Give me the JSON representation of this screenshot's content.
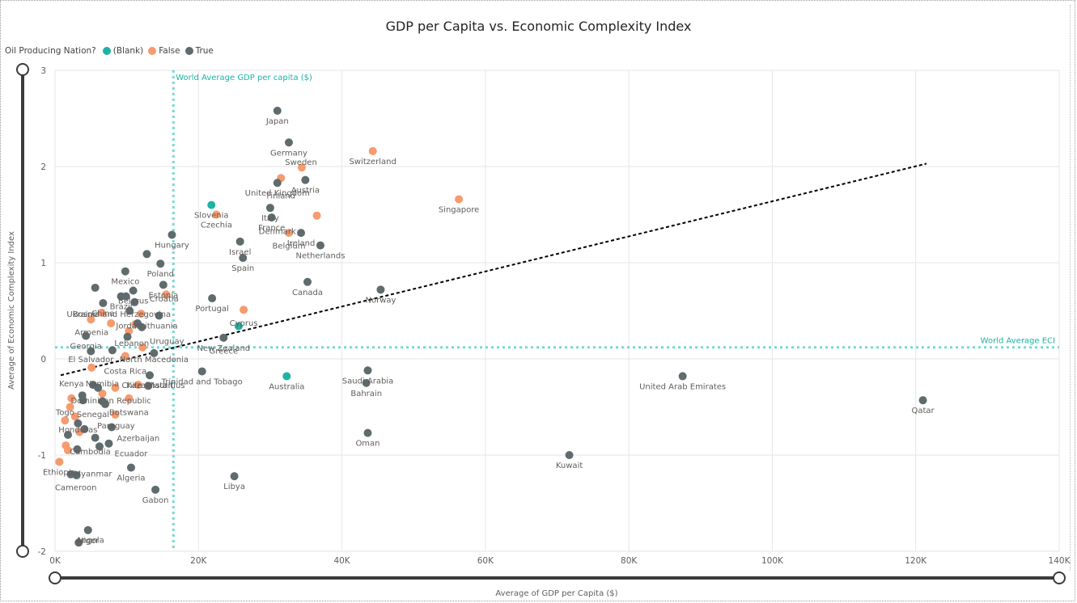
{
  "chart_data": {
    "type": "scatter",
    "title": "GDP per Capita vs. Economic Complexity Index",
    "xlabel": "Average of GDP per Capita ($)",
    "ylabel": "Average of Economic Complexity Index",
    "xlim": [
      0,
      140000
    ],
    "ylim": [
      -2,
      3
    ],
    "x_ticks": [
      {
        "value": 0,
        "label": "0K"
      },
      {
        "value": 20000,
        "label": "20K"
      },
      {
        "value": 40000,
        "label": "40K"
      },
      {
        "value": 60000,
        "label": "60K"
      },
      {
        "value": 80000,
        "label": "80K"
      },
      {
        "value": 100000,
        "label": "100K"
      },
      {
        "value": 120000,
        "label": "120K"
      },
      {
        "value": 140000,
        "label": "140K"
      }
    ],
    "y_ticks": [
      {
        "value": 3,
        "label": "3"
      },
      {
        "value": 2,
        "label": "2"
      },
      {
        "value": 1,
        "label": "1"
      },
      {
        "value": 0,
        "label": "0"
      },
      {
        "value": -1,
        "label": "-1"
      },
      {
        "value": -2,
        "label": "-2"
      }
    ],
    "grid": true,
    "legend": {
      "title": "Oil Producing Nation?",
      "position": "top-left",
      "entries": [
        {
          "name": "(Blank)",
          "color": "#1db3a5"
        },
        {
          "name": "False",
          "color": "#f79a6e"
        },
        {
          "name": "True",
          "color": "#5f6b6d"
        }
      ]
    },
    "reference_lines": [
      {
        "axis": "x",
        "value": 16500,
        "label": "World Average GDP per capita ($)",
        "color": "#79d9d0"
      },
      {
        "axis": "y",
        "value": 0.12,
        "label": "World Average ECI",
        "color": "#79d9d0"
      }
    ],
    "trend_line": {
      "from": [
        800,
        -0.17
      ],
      "to": [
        121500,
        2.03
      ],
      "color": "#000000"
    },
    "series": [
      {
        "name": "(Blank)",
        "color": "#1db3a5",
        "points": [
          {
            "label": "Slovenia",
            "x": 21800,
            "y": 1.6
          },
          {
            "label": "",
            "x": 25600,
            "y": 0.34
          },
          {
            "label": "Australia",
            "x": 32300,
            "y": -0.18
          }
        ]
      },
      {
        "name": "False",
        "color": "#f79a6e",
        "points": [
          {
            "label": "Switzerland",
            "x": 44300,
            "y": 2.16
          },
          {
            "label": "Singapore",
            "x": 56300,
            "y": 1.66
          },
          {
            "label": "",
            "x": 34400,
            "y": 1.99
          },
          {
            "label": "",
            "x": 31500,
            "y": 1.88
          },
          {
            "label": "Czechia",
            "x": 22500,
            "y": 1.5
          },
          {
            "label": "",
            "x": 36500,
            "y": 1.49
          },
          {
            "label": "",
            "x": 32600,
            "y": 1.31
          },
          {
            "label": "",
            "x": 15500,
            "y": 0.67
          },
          {
            "label": "",
            "x": 26300,
            "y": 0.51
          },
          {
            "label": "",
            "x": 6500,
            "y": 0.48
          },
          {
            "label": "",
            "x": 12000,
            "y": 0.47
          },
          {
            "label": "",
            "x": 5000,
            "y": 0.41
          },
          {
            "label": "",
            "x": 7800,
            "y": 0.37
          },
          {
            "label": "",
            "x": 10300,
            "y": 0.29
          },
          {
            "label": "",
            "x": 11200,
            "y": 0.36
          },
          {
            "label": "",
            "x": 12200,
            "y": 0.12
          },
          {
            "label": "",
            "x": 9800,
            "y": 0.03
          },
          {
            "label": "",
            "x": 5100,
            "y": -0.09
          },
          {
            "label": "",
            "x": 11600,
            "y": -0.27
          },
          {
            "label": "",
            "x": 8400,
            "y": -0.3
          },
          {
            "label": "",
            "x": 6600,
            "y": -0.36
          },
          {
            "label": "",
            "x": 10300,
            "y": -0.41
          },
          {
            "label": "",
            "x": 2300,
            "y": -0.41
          },
          {
            "label": "",
            "x": 8400,
            "y": -0.58
          },
          {
            "label": "",
            "x": 2100,
            "y": -0.5
          },
          {
            "label": "",
            "x": 2800,
            "y": -0.6
          },
          {
            "label": "",
            "x": 1400,
            "y": -0.64
          },
          {
            "label": "",
            "x": 3400,
            "y": -0.76
          },
          {
            "label": "",
            "x": 1500,
            "y": -0.9
          },
          {
            "label": "",
            "x": 1800,
            "y": -0.95
          },
          {
            "label": "Ethiopia",
            "x": 600,
            "y": -1.07
          }
        ]
      },
      {
        "name": "True",
        "color": "#5f6b6d",
        "points": [
          {
            "label": "Japan",
            "x": 31000,
            "y": 2.58
          },
          {
            "label": "Germany",
            "x": 32600,
            "y": 2.25
          },
          {
            "label": "United Kingdom",
            "x": 31000,
            "y": 1.83
          },
          {
            "label": "Austria",
            "x": 34900,
            "y": 1.86
          },
          {
            "label": "Italy",
            "x": 30000,
            "y": 1.57
          },
          {
            "label": "France",
            "x": 30200,
            "y": 1.47
          },
          {
            "label": "Ireland",
            "x": 34300,
            "y": 1.31
          },
          {
            "label": "Netherlands",
            "x": 37000,
            "y": 1.18
          },
          {
            "label": "Hungary",
            "x": 16300,
            "y": 1.29
          },
          {
            "label": "",
            "x": 12800,
            "y": 1.09
          },
          {
            "label": "Poland",
            "x": 14700,
            "y": 0.99
          },
          {
            "label": "Israel",
            "x": 25800,
            "y": 1.22
          },
          {
            "label": "Spain",
            "x": 26200,
            "y": 1.05
          },
          {
            "label": "Canada",
            "x": 35200,
            "y": 0.8
          },
          {
            "label": "Norway",
            "x": 45400,
            "y": 0.72
          },
          {
            "label": "Portugal",
            "x": 21900,
            "y": 0.63
          },
          {
            "label": "Mexico",
            "x": 9800,
            "y": 0.91
          },
          {
            "label": "Estonia",
            "x": 15100,
            "y": 0.77
          },
          {
            "label": "Belarus",
            "x": 10900,
            "y": 0.71
          },
          {
            "label": "",
            "x": 5600,
            "y": 0.74
          },
          {
            "label": "China",
            "x": 6700,
            "y": 0.58
          },
          {
            "label": "Brazil",
            "x": 9200,
            "y": 0.65
          },
          {
            "label": "",
            "x": 9900,
            "y": 0.65
          },
          {
            "label": "",
            "x": 11100,
            "y": 0.59
          },
          {
            "label": "",
            "x": 10400,
            "y": 0.5
          },
          {
            "label": "Lithuania",
            "x": 14500,
            "y": 0.45
          },
          {
            "label": "",
            "x": 12100,
            "y": 0.33
          },
          {
            "label": "",
            "x": 11500,
            "y": 0.37
          },
          {
            "label": "",
            "x": 10100,
            "y": 0.23
          },
          {
            "label": "New Zealand",
            "x": 23500,
            "y": 0.22
          },
          {
            "label": "Georgia",
            "x": 4300,
            "y": 0.24
          },
          {
            "label": "",
            "x": 8000,
            "y": 0.09
          },
          {
            "label": "",
            "x": 5000,
            "y": 0.08
          },
          {
            "label": "",
            "x": 13800,
            "y": 0.06
          },
          {
            "label": "Trinidad and Tobago",
            "x": 20500,
            "y": -0.13
          },
          {
            "label": "Saudi Arabia",
            "x": 43600,
            "y": -0.12
          },
          {
            "label": "Bahrain",
            "x": 43400,
            "y": -0.25
          },
          {
            "label": "United Arab Emirates",
            "x": 87500,
            "y": -0.18
          },
          {
            "label": "Qatar",
            "x": 121000,
            "y": -0.43
          },
          {
            "label": "Oman",
            "x": 43600,
            "y": -0.77
          },
          {
            "label": "Kuwait",
            "x": 71700,
            "y": -1.0
          },
          {
            "label": "Libya",
            "x": 25000,
            "y": -1.22
          },
          {
            "label": "Kazakhstan",
            "x": 13200,
            "y": -0.17
          },
          {
            "label": "",
            "x": 13000,
            "y": -0.28
          },
          {
            "label": "",
            "x": 5300,
            "y": -0.27
          },
          {
            "label": "",
            "x": 6000,
            "y": -0.3
          },
          {
            "label": "",
            "x": 3800,
            "y": -0.38
          },
          {
            "label": "",
            "x": 3900,
            "y": -0.43
          },
          {
            "label": "",
            "x": 6600,
            "y": -0.44
          },
          {
            "label": "",
            "x": 7000,
            "y": -0.47
          },
          {
            "label": "",
            "x": 3200,
            "y": -0.67
          },
          {
            "label": "",
            "x": 4100,
            "y": -0.73
          },
          {
            "label": "",
            "x": 7900,
            "y": -0.71
          },
          {
            "label": "",
            "x": 1800,
            "y": -0.79
          },
          {
            "label": "",
            "x": 5600,
            "y": -0.82
          },
          {
            "label": "",
            "x": 7500,
            "y": -0.88
          },
          {
            "label": "",
            "x": 6200,
            "y": -0.91
          },
          {
            "label": "",
            "x": 3100,
            "y": -0.94
          },
          {
            "label": "Algeria",
            "x": 10600,
            "y": -1.13
          },
          {
            "label": "",
            "x": 2200,
            "y": -1.2
          },
          {
            "label": "",
            "x": 3000,
            "y": -1.21
          },
          {
            "label": "Gabon",
            "x": 14000,
            "y": -1.36
          },
          {
            "label": "Niger",
            "x": 4600,
            "y": -1.78
          },
          {
            "label": "",
            "x": 3300,
            "y": -1.91
          }
        ]
      }
    ],
    "text_labels": [
      {
        "text": "Bosnia and Herzegovina",
        "x": 9300,
        "y": 0.47
      },
      {
        "text": "Croatia",
        "x": 15200,
        "y": 0.63
      },
      {
        "text": "Ukraine",
        "x": 3800,
        "y": 0.47
      },
      {
        "text": "Armenia",
        "x": 5100,
        "y": 0.28
      },
      {
        "text": "Jordan",
        "x": 10300,
        "y": 0.35
      },
      {
        "text": "Lebanon",
        "x": 10700,
        "y": 0.17
      },
      {
        "text": "Uruguay",
        "x": 15600,
        "y": 0.19
      },
      {
        "text": "Cyprus",
        "x": 26300,
        "y": 0.38
      },
      {
        "text": "Denmark",
        "x": 31000,
        "y": 1.33
      },
      {
        "text": "Finland",
        "x": 31500,
        "y": 1.7
      },
      {
        "text": "Sweden",
        "x": 34300,
        "y": 2.05
      },
      {
        "text": "Belgium",
        "x": 32600,
        "y": 1.18
      },
      {
        "text": "Greece",
        "x": 23500,
        "y": 0.09
      },
      {
        "text": "El Salvador",
        "x": 5000,
        "y": 0.0
      },
      {
        "text": "North Macedonia",
        "x": 13800,
        "y": 0.0
      },
      {
        "text": "Costa Rica",
        "x": 9800,
        "y": -0.12
      },
      {
        "text": "Kenya",
        "x": 2300,
        "y": -0.25
      },
      {
        "text": "Namibia",
        "x": 6600,
        "y": -0.25
      },
      {
        "text": "Chile",
        "x": 10700,
        "y": -0.27
      },
      {
        "text": "Mauritius",
        "x": 15500,
        "y": -0.27
      },
      {
        "text": "Dominican Republic",
        "x": 7800,
        "y": -0.43
      },
      {
        "text": "Botswana",
        "x": 10300,
        "y": -0.55
      },
      {
        "text": "Togo",
        "x": 1400,
        "y": -0.55
      },
      {
        "text": "Senegal",
        "x": 5300,
        "y": -0.57
      },
      {
        "text": "Paraguay",
        "x": 8500,
        "y": -0.69
      },
      {
        "text": "Honduras",
        "x": 3200,
        "y": -0.73
      },
      {
        "text": "Azerbaijan",
        "x": 11600,
        "y": -0.82
      },
      {
        "text": "Cambodia",
        "x": 4900,
        "y": -0.96
      },
      {
        "text": "Ecuador",
        "x": 10600,
        "y": -0.98
      },
      {
        "text": "Myanmar",
        "x": 5300,
        "y": -1.19
      },
      {
        "text": "Cameroon",
        "x": 2900,
        "y": -1.33
      },
      {
        "text": "Angola",
        "x": 4900,
        "y": -1.88
      }
    ]
  }
}
